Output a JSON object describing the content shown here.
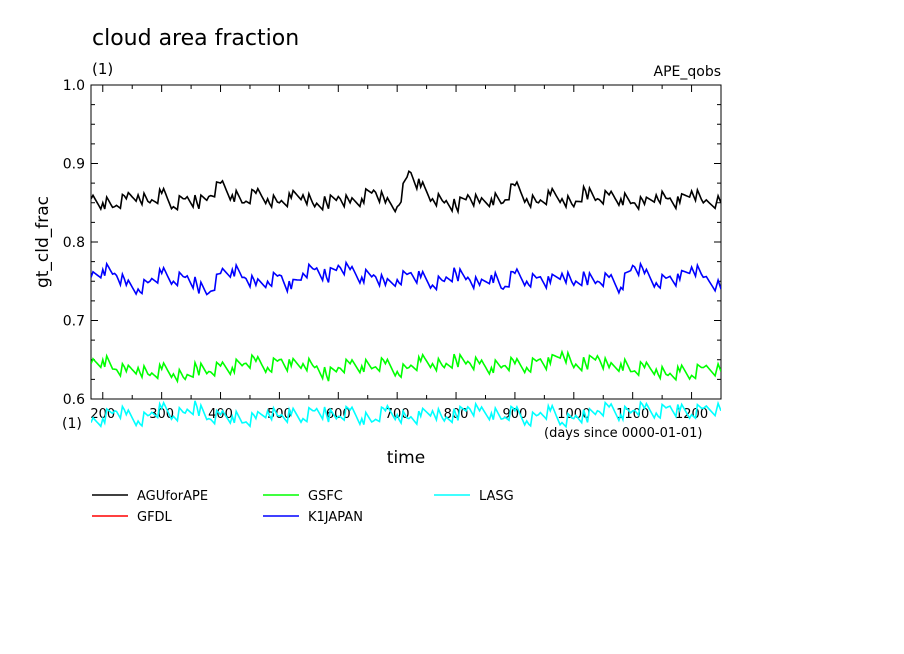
{
  "chart_data": {
    "type": "line",
    "title": "cloud area fraction",
    "subtitle": "(1)",
    "experiment": "APE_qobs",
    "xlabel": "time",
    "x_unit_label": "(days since 0000-01-01)",
    "ylabel": "gt_cld_frac",
    "y_unit_label": "(1)",
    "xlim": [
      180,
      1250
    ],
    "ylim": [
      0.6,
      1.0
    ],
    "x_ticks": [
      200,
      300,
      400,
      500,
      600,
      700,
      800,
      900,
      1000,
      1100,
      1200
    ],
    "y_ticks": [
      0.6,
      0.7,
      0.8,
      0.9,
      1.0
    ],
    "y_tick_labels": [
      "0.6",
      "0.7",
      "0.8",
      "0.9",
      "1.0"
    ],
    "x_tick_labels": [
      "200",
      "300",
      "400",
      "500",
      "600",
      "700",
      "800",
      "900",
      "1000",
      "1100",
      "1200"
    ],
    "grid": false,
    "legend_position": "bottom",
    "series": [
      {
        "name": "AGUforAPE",
        "color": "#000000",
        "x": [
          180,
          200,
          220,
          240,
          260,
          280,
          300,
          320,
          340,
          360,
          380,
          400,
          420,
          440,
          460,
          480,
          500,
          520,
          540,
          560,
          580,
          600,
          620,
          640,
          660,
          680,
          700,
          720,
          740,
          760,
          780,
          800,
          820,
          840,
          860,
          880,
          900,
          920,
          940,
          960,
          980,
          1000,
          1020,
          1040,
          1060,
          1080,
          1100,
          1120,
          1140,
          1160,
          1180,
          1200,
          1220,
          1250
        ],
        "y": [
          0.855,
          0.85,
          0.845,
          0.855,
          0.86,
          0.85,
          0.862,
          0.845,
          0.855,
          0.85,
          0.858,
          0.875,
          0.86,
          0.85,
          0.862,
          0.855,
          0.85,
          0.856,
          0.86,
          0.845,
          0.85,
          0.858,
          0.85,
          0.855,
          0.866,
          0.85,
          0.845,
          0.89,
          0.87,
          0.855,
          0.85,
          0.845,
          0.86,
          0.85,
          0.855,
          0.85,
          0.872,
          0.855,
          0.85,
          0.86,
          0.855,
          0.845,
          0.865,
          0.855,
          0.86,
          0.855,
          0.85,
          0.848,
          0.86,
          0.855,
          0.85,
          0.865,
          0.85,
          0.85
        ]
      },
      {
        "name": "GFDL",
        "color": "#ff0000",
        "x": [],
        "y": []
      },
      {
        "name": "GSFC",
        "color": "#00ff00",
        "x": [
          180,
          200,
          220,
          240,
          260,
          280,
          300,
          320,
          340,
          360,
          380,
          400,
          420,
          440,
          460,
          480,
          500,
          520,
          540,
          560,
          580,
          600,
          620,
          640,
          660,
          680,
          700,
          720,
          740,
          760,
          780,
          800,
          820,
          840,
          860,
          880,
          900,
          920,
          940,
          960,
          980,
          1000,
          1020,
          1040,
          1060,
          1080,
          1100,
          1120,
          1140,
          1160,
          1180,
          1200,
          1220,
          1250
        ],
        "y": [
          0.645,
          0.65,
          0.638,
          0.635,
          0.64,
          0.63,
          0.638,
          0.632,
          0.625,
          0.64,
          0.635,
          0.642,
          0.64,
          0.645,
          0.648,
          0.64,
          0.65,
          0.642,
          0.645,
          0.64,
          0.63,
          0.64,
          0.645,
          0.642,
          0.64,
          0.645,
          0.635,
          0.64,
          0.648,
          0.645,
          0.64,
          0.65,
          0.648,
          0.645,
          0.64,
          0.642,
          0.645,
          0.64,
          0.65,
          0.645,
          0.66,
          0.64,
          0.645,
          0.655,
          0.64,
          0.645,
          0.635,
          0.64,
          0.638,
          0.63,
          0.635,
          0.63,
          0.64,
          0.635
        ]
      },
      {
        "name": "K1JAPAN",
        "color": "#0000ff",
        "x": [
          180,
          200,
          220,
          240,
          260,
          280,
          300,
          320,
          340,
          360,
          380,
          400,
          420,
          440,
          460,
          480,
          500,
          520,
          540,
          560,
          580,
          600,
          620,
          640,
          660,
          680,
          700,
          720,
          740,
          760,
          780,
          800,
          820,
          840,
          860,
          880,
          900,
          920,
          940,
          960,
          980,
          1000,
          1020,
          1040,
          1060,
          1080,
          1100,
          1120,
          1140,
          1160,
          1180,
          1200,
          1220,
          1250
        ],
        "y": [
          0.755,
          0.765,
          0.76,
          0.745,
          0.74,
          0.75,
          0.76,
          0.75,
          0.755,
          0.745,
          0.735,
          0.76,
          0.765,
          0.755,
          0.745,
          0.75,
          0.758,
          0.74,
          0.76,
          0.765,
          0.755,
          0.77,
          0.765,
          0.755,
          0.758,
          0.745,
          0.752,
          0.76,
          0.755,
          0.745,
          0.75,
          0.76,
          0.755,
          0.745,
          0.758,
          0.74,
          0.76,
          0.75,
          0.755,
          0.748,
          0.76,
          0.745,
          0.755,
          0.75,
          0.755,
          0.742,
          0.77,
          0.76,
          0.748,
          0.755,
          0.752,
          0.768,
          0.755,
          0.74
        ]
      },
      {
        "name": "LASG",
        "color": "#00ffff",
        "x": [
          180,
          200,
          220,
          240,
          260,
          280,
          300,
          320,
          340,
          360,
          380,
          400,
          420,
          440,
          460,
          480,
          500,
          520,
          540,
          560,
          580,
          600,
          620,
          640,
          660,
          680,
          700,
          720,
          740,
          760,
          780,
          800,
          820,
          840,
          860,
          880,
          900,
          920,
          940,
          960,
          980,
          1000,
          1020,
          1040,
          1060,
          1080,
          1100,
          1120,
          1140,
          1160,
          1180,
          1200,
          1220,
          1250
        ],
        "y": [
          0.57,
          0.575,
          0.585,
          0.58,
          0.572,
          0.58,
          0.588,
          0.578,
          0.582,
          0.59,
          0.575,
          0.58,
          0.578,
          0.57,
          0.575,
          0.585,
          0.578,
          0.58,
          0.575,
          0.585,
          0.58,
          0.578,
          0.586,
          0.575,
          0.572,
          0.585,
          0.58,
          0.575,
          0.578,
          0.585,
          0.572,
          0.58,
          0.59,
          0.585,
          0.582,
          0.575,
          0.585,
          0.572,
          0.58,
          0.585,
          0.57,
          0.575,
          0.578,
          0.585,
          0.59,
          0.58,
          0.585,
          0.588,
          0.582,
          0.59,
          0.585,
          0.58,
          0.588,
          0.585
        ]
      }
    ]
  }
}
